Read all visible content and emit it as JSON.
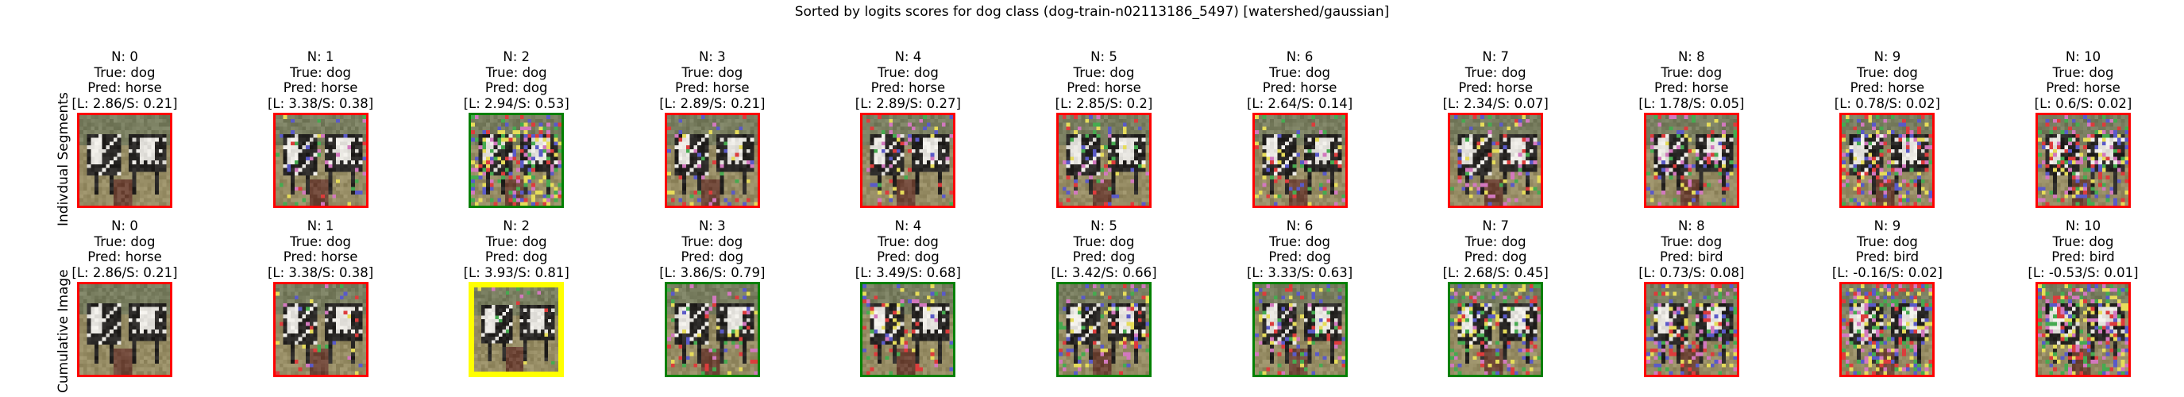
{
  "figure": {
    "title": "Sorted by logits scores for dog class (dog-train-n02113186_5497) [watershed/gaussian]",
    "row_labels": [
      "Indivdual Segments",
      "Cumulative Image"
    ]
  },
  "colors": {
    "incorrect": "#ff0000",
    "correct": "#008000",
    "best": "#ffff00"
  },
  "chart_data": {
    "type": "table",
    "title": "Sorted by logits scores for dog class (dog-train-n02113186_5497) [watershed/gaussian]",
    "columns": [
      "N",
      "True",
      "Pred",
      "L",
      "S"
    ],
    "rows": [
      {
        "name": "Indivdual Segments",
        "panels": [
          {
            "n": "N: 0",
            "true_label": "True: dog",
            "pred": "Pred: horse",
            "score": "[L: 2.86/S: 0.21]",
            "N": 0,
            "L": 2.86,
            "S": 0.21,
            "border": "incorrect",
            "noise": 0.0
          },
          {
            "n": "N: 1",
            "true_label": "True: dog",
            "pred": "Pred: horse",
            "score": "[L: 3.38/S: 0.38]",
            "N": 1,
            "L": 3.38,
            "S": 0.38,
            "border": "incorrect",
            "noise": 0.08
          },
          {
            "n": "N: 2",
            "true_label": "True: dog",
            "pred": "Pred: dog",
            "score": "[L: 2.94/S: 0.53]",
            "N": 2,
            "L": 2.94,
            "S": 0.53,
            "border": "correct",
            "noise": 0.35
          },
          {
            "n": "N: 3",
            "true_label": "True: dog",
            "pred": "Pred: horse",
            "score": "[L: 2.89/S: 0.21]",
            "N": 3,
            "L": 2.89,
            "S": 0.21,
            "border": "incorrect",
            "noise": 0.1
          },
          {
            "n": "N: 4",
            "true_label": "True: dog",
            "pred": "Pred: horse",
            "score": "[L: 2.89/S: 0.27]",
            "N": 4,
            "L": 2.89,
            "S": 0.27,
            "border": "incorrect",
            "noise": 0.1
          },
          {
            "n": "N: 5",
            "true_label": "True: dog",
            "pred": "Pred: horse",
            "score": "[L: 2.85/S: 0.2]",
            "N": 5,
            "L": 2.85,
            "S": 0.2,
            "border": "incorrect",
            "noise": 0.1
          },
          {
            "n": "N: 6",
            "true_label": "True: dog",
            "pred": "Pred: horse",
            "score": "[L: 2.64/S: 0.14]",
            "N": 6,
            "L": 2.64,
            "S": 0.14,
            "border": "incorrect",
            "noise": 0.12
          },
          {
            "n": "N: 7",
            "true_label": "True: dog",
            "pred": "Pred: horse",
            "score": "[L: 2.34/S: 0.07]",
            "N": 7,
            "L": 2.34,
            "S": 0.07,
            "border": "incorrect",
            "noise": 0.15
          },
          {
            "n": "N: 8",
            "true_label": "True: dog",
            "pred": "Pred: horse",
            "score": "[L: 1.78/S: 0.05]",
            "N": 8,
            "L": 1.78,
            "S": 0.05,
            "border": "incorrect",
            "noise": 0.18
          },
          {
            "n": "N: 9",
            "true_label": "True: dog",
            "pred": "Pred: horse",
            "score": "[L: 0.78/S: 0.02]",
            "N": 9,
            "L": 0.78,
            "S": 0.02,
            "border": "incorrect",
            "noise": 0.3
          },
          {
            "n": "N: 10",
            "true_label": "True: dog",
            "pred": "Pred: horse",
            "score": "[L: 0.6/S: 0.02]",
            "N": 10,
            "L": 0.6,
            "S": 0.02,
            "border": "incorrect",
            "noise": 0.3
          }
        ]
      },
      {
        "name": "Cumulative Image",
        "panels": [
          {
            "n": "N: 0",
            "true_label": "True: dog",
            "pred": "Pred: horse",
            "score": "[L: 2.86/S: 0.21]",
            "N": 0,
            "L": 2.86,
            "S": 0.21,
            "border": "incorrect",
            "noise": 0.0
          },
          {
            "n": "N: 1",
            "true_label": "True: dog",
            "pred": "Pred: horse",
            "score": "[L: 3.38/S: 0.38]",
            "N": 1,
            "L": 3.38,
            "S": 0.38,
            "border": "incorrect",
            "noise": 0.06
          },
          {
            "n": "N: 2",
            "true_label": "True: dog",
            "pred": "Pred: dog",
            "score": "[L: 3.93/S: 0.81]",
            "N": 2,
            "L": 3.93,
            "S": 0.81,
            "border": "best",
            "noise": 0.02
          },
          {
            "n": "N: 3",
            "true_label": "True: dog",
            "pred": "Pred: dog",
            "score": "[L: 3.86/S: 0.79]",
            "N": 3,
            "L": 3.86,
            "S": 0.79,
            "border": "correct",
            "noise": 0.12
          },
          {
            "n": "N: 4",
            "true_label": "True: dog",
            "pred": "Pred: dog",
            "score": "[L: 3.49/S: 0.68]",
            "N": 4,
            "L": 3.49,
            "S": 0.68,
            "border": "correct",
            "noise": 0.15
          },
          {
            "n": "N: 5",
            "true_label": "True: dog",
            "pred": "Pred: dog",
            "score": "[L: 3.42/S: 0.66]",
            "N": 5,
            "L": 3.42,
            "S": 0.66,
            "border": "correct",
            "noise": 0.18
          },
          {
            "n": "N: 6",
            "true_label": "True: dog",
            "pred": "Pred: dog",
            "score": "[L: 3.33/S: 0.63]",
            "N": 6,
            "L": 3.33,
            "S": 0.63,
            "border": "correct",
            "noise": 0.2
          },
          {
            "n": "N: 7",
            "true_label": "True: dog",
            "pred": "Pred: dog",
            "score": "[L: 2.68/S: 0.45]",
            "N": 7,
            "L": 2.68,
            "S": 0.45,
            "border": "correct",
            "noise": 0.24
          },
          {
            "n": "N: 8",
            "true_label": "True: dog",
            "pred": "Pred: bird",
            "score": "[L: 0.73/S: 0.08]",
            "N": 8,
            "L": 0.73,
            "S": 0.08,
            "border": "incorrect",
            "noise": 0.3
          },
          {
            "n": "N: 9",
            "true_label": "True: dog",
            "pred": "Pred: bird",
            "score": "[L: -0.16/S: 0.02]",
            "N": 9,
            "L": -0.16,
            "S": 0.02,
            "border": "incorrect",
            "noise": 0.36
          },
          {
            "n": "N: 10",
            "true_label": "True: dog",
            "pred": "Pred: bird",
            "score": "[L: -0.53/S: 0.01]",
            "N": 10,
            "L": -0.53,
            "S": 0.01,
            "border": "incorrect",
            "noise": 0.42
          }
        ]
      }
    ]
  }
}
